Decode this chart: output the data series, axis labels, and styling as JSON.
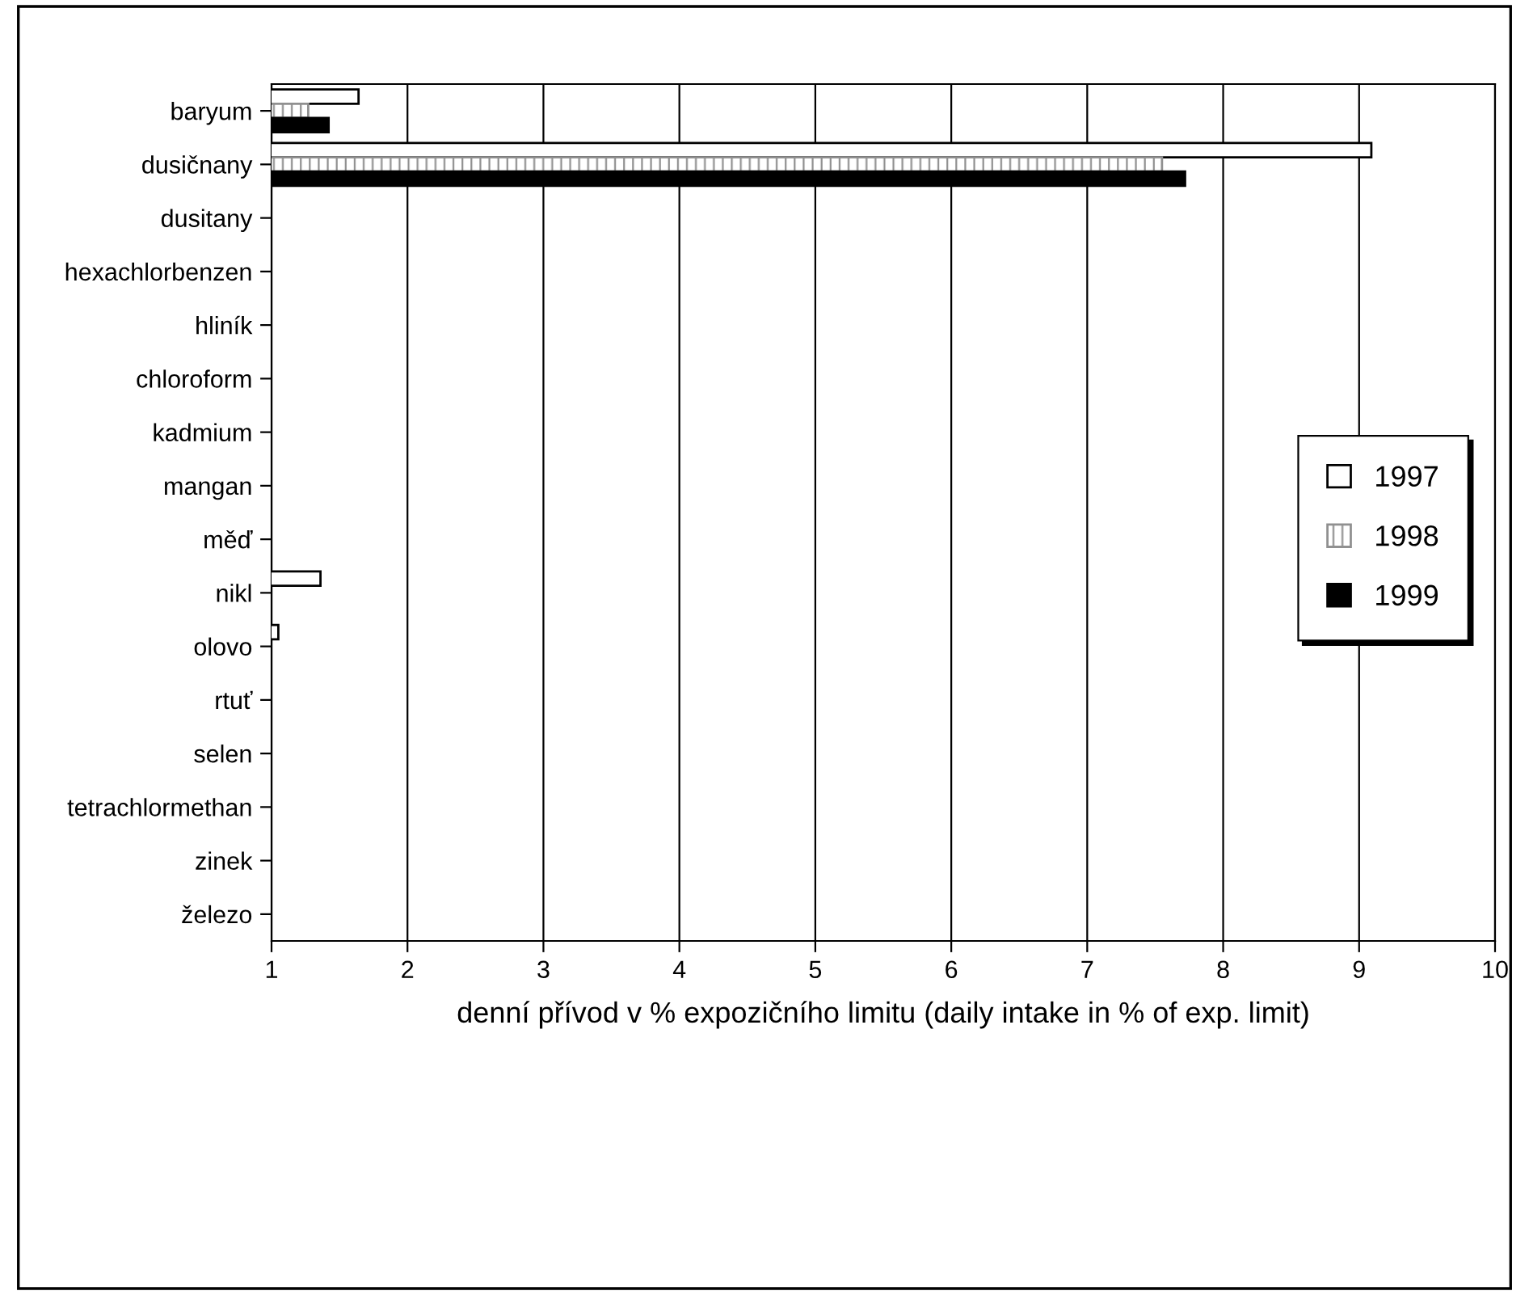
{
  "chart_data": {
    "type": "bar",
    "orientation": "horizontal",
    "xlabel": "denní přívod v % expozičního limitu (daily intake in % of exp. limit)",
    "categories": [
      "baryum",
      "dusičnany",
      "dusitany",
      "hexachlorbenzen",
      "hliník",
      "chloroform",
      "kadmium",
      "mangan",
      "měď",
      "nikl",
      "olovo",
      "rtuť",
      "selen",
      "tetrachlormethan",
      "zinek",
      "železo"
    ],
    "series": [
      {
        "name": "1997",
        "color": "#ffffff",
        "values": [
          1.64,
          9.09,
          null,
          null,
          null,
          null,
          null,
          null,
          null,
          1.36,
          1.05,
          null,
          null,
          null,
          null,
          null
        ]
      },
      {
        "name": "1998",
        "color": "#909090",
        "values": [
          1.27,
          7.55,
          null,
          null,
          null,
          null,
          null,
          null,
          null,
          null,
          null,
          null,
          null,
          null,
          null,
          null
        ]
      },
      {
        "name": "1999",
        "color": "#000000",
        "values": [
          1.42,
          7.72,
          null,
          null,
          null,
          null,
          null,
          null,
          null,
          null,
          null,
          null,
          null,
          null,
          null,
          null
        ]
      }
    ],
    "xlim": [
      1,
      10
    ],
    "xticks": [
      1,
      2,
      3,
      4,
      5,
      6,
      7,
      8,
      9,
      10
    ],
    "grid": "x",
    "legend": "right"
  }
}
